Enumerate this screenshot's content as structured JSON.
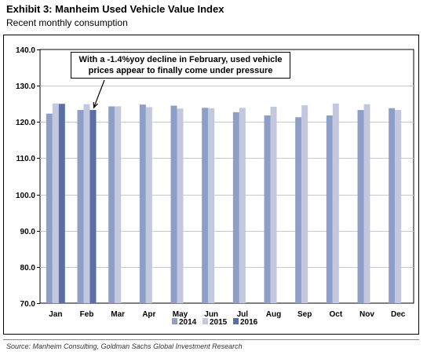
{
  "header": {
    "title": "Exhibit 3: Manheim Used Vehicle Value Index",
    "subtitle": "Recent monthly consumption"
  },
  "annotation": {
    "line1": "With a -1.4%yoy decline in February, used vehicle",
    "line2": "prices appear to finally come under pressure"
  },
  "source": "Source: Manheim Consulting, Goldman Sachs Global Investment Research",
  "chart_data": {
    "type": "bar",
    "categories": [
      "Jan",
      "Feb",
      "Mar",
      "Apr",
      "May",
      "Jun",
      "Jul",
      "Aug",
      "Sep",
      "Oct",
      "Nov",
      "Dec"
    ],
    "series": [
      {
        "name": "2014",
        "color": "#8e9fc7",
        "values": [
          122.3,
          123.3,
          124.3,
          124.8,
          124.5,
          123.9,
          122.7,
          121.8,
          121.3,
          121.8,
          123.3,
          123.8
        ]
      },
      {
        "name": "2015",
        "color": "#c3c8df",
        "values": [
          125.1,
          124.9,
          124.3,
          124.1,
          123.7,
          123.8,
          123.9,
          124.2,
          124.6,
          125.1,
          124.9,
          123.3
        ]
      },
      {
        "name": "2016",
        "color": "#5b6fa6",
        "values": [
          125.0,
          123.3,
          null,
          null,
          null,
          null,
          null,
          null,
          null,
          null,
          null,
          null
        ]
      }
    ],
    "ylim": [
      70,
      140
    ],
    "yticks": [
      "70.0",
      "80.0",
      "90.0",
      "100.0",
      "110.0",
      "120.0",
      "130.0",
      "140.0"
    ],
    "grid": true,
    "legend_position": "bottom"
  }
}
